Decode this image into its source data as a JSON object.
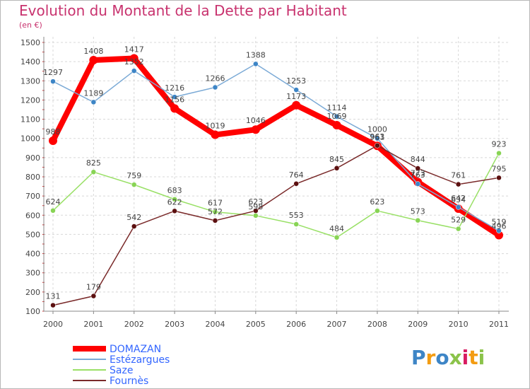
{
  "chart_data": {
    "type": "line",
    "title": "Evolution du Montant de la Dette par Habitant",
    "unit_label": "(en €)",
    "x": [
      "2000",
      "2001",
      "2002",
      "2003",
      "2004",
      "2005",
      "2006",
      "2007",
      "2008",
      "2009",
      "2010",
      "2011"
    ],
    "ylim": [
      100,
      1500
    ],
    "yticks": [
      "100",
      "200",
      "300",
      "400",
      "500",
      "600",
      "700",
      "800",
      "900",
      "1000",
      "1100",
      "1200",
      "1300",
      "1400",
      "1500"
    ],
    "grid": true,
    "legend_position": "bottom-left",
    "series": [
      {
        "name": "DOMAZAN",
        "color": "#ff0000",
        "marker": "#ff0000",
        "labelColor": "#444444",
        "width": 8,
        "values": [
          988,
          1408,
          1417,
          1156,
          1019,
          1046,
          1173,
          1069,
          961,
          773,
          634,
          496
        ],
        "labels": [
          "988",
          "1408",
          "1417",
          "1156",
          "1019",
          "1046",
          "1173",
          "1069",
          "961",
          "773",
          "634",
          "496"
        ]
      },
      {
        "name": "Estézargues",
        "color": "#7baad6",
        "marker": "#3d85c6",
        "labelColor": "#444444",
        "width": 1.5,
        "values": [
          1297,
          1189,
          1352,
          1216,
          1266,
          1388,
          1253,
          1114,
          1000,
          763,
          642,
          519
        ],
        "labels": [
          "1297",
          "1189",
          "1352",
          "1216",
          "1266",
          "1388",
          "1253",
          "1114",
          "1000",
          "763",
          "642",
          "519"
        ]
      },
      {
        "name": "Saze",
        "color": "#99e066",
        "marker": "#88d455",
        "labelColor": "#444444",
        "width": 1.5,
        "values": [
          624,
          825,
          759,
          683,
          617,
          598,
          553,
          484,
          623,
          573,
          529,
          923
        ],
        "labels": [
          "624",
          "825",
          "759",
          "683",
          "617",
          "598",
          "553",
          "484",
          "623",
          "573",
          "529",
          "923"
        ]
      },
      {
        "name": "Fournès",
        "color": "#7a2a2a",
        "marker": "#5c1010",
        "labelColor": "#444444",
        "width": 1.5,
        "values": [
          131,
          179,
          542,
          622,
          572,
          623,
          764,
          845,
          963,
          844,
          761,
          795
        ],
        "labels": [
          "131",
          "179",
          "542",
          "622",
          "572",
          "623",
          "764",
          "845",
          "963",
          "844",
          "761",
          "795"
        ]
      }
    ],
    "legend": [
      {
        "name": "DOMAZAN",
        "color": "#ff0000",
        "text_color": "#3366ff",
        "width": 8
      },
      {
        "name": "Estézargues",
        "color": "#7baad6",
        "text_color": "#3366ff",
        "width": 2
      },
      {
        "name": "Saze",
        "color": "#99e066",
        "text_color": "#3366ff",
        "width": 2
      },
      {
        "name": "Fournès",
        "color": "#7a2a2a",
        "text_color": "#3366ff",
        "width": 2
      }
    ]
  },
  "logo": {
    "letters": [
      "P",
      "r",
      "o",
      "x",
      "i",
      "t",
      "i"
    ],
    "colors": [
      "#3d85c6",
      "#f39c12",
      "#3d85c6",
      "#8bc34a",
      "#d81b60",
      "#f39c12",
      "#8bc34a"
    ]
  }
}
